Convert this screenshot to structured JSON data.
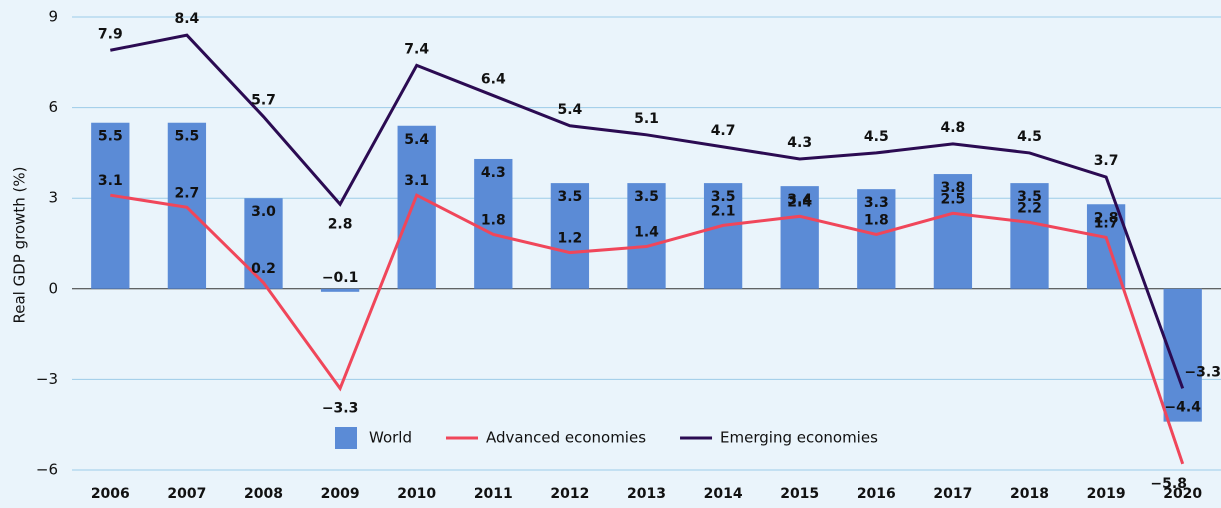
{
  "chart_data": {
    "type": "bar_line",
    "y_label": "Real GDP growth (%)",
    "categories": [
      "2006",
      "2007",
      "2008",
      "2009",
      "2010",
      "2011",
      "2012",
      "2013",
      "2014",
      "2015",
      "2016",
      "2017",
      "2018",
      "2019",
      "2020"
    ],
    "series": [
      {
        "name": "World",
        "type": "bar",
        "color": "#5b8bd6",
        "values": [
          5.5,
          5.5,
          3.0,
          -0.1,
          5.4,
          4.3,
          3.5,
          3.5,
          3.5,
          3.4,
          3.3,
          3.8,
          3.5,
          2.8,
          -4.4
        ],
        "value_labels": [
          "5.5",
          "5.5",
          "3.0",
          "−0.1",
          "5.4",
          "4.3",
          "3.5",
          "3.5",
          "3.5",
          "3.4",
          "3.3",
          "3.8",
          "3.5",
          "2.8",
          "−4.4"
        ]
      },
      {
        "name": "Advanced economies",
        "type": "line",
        "color": "#f0465a",
        "values": [
          3.1,
          2.7,
          0.2,
          -3.3,
          3.1,
          1.8,
          1.2,
          1.4,
          2.1,
          2.4,
          1.8,
          2.5,
          2.2,
          1.7,
          -5.8
        ],
        "value_labels": [
          "3.1",
          "2.7",
          "0.2",
          "−3.3",
          "3.1",
          "1.8",
          "1.2",
          "1.4",
          "2.1",
          "2.4",
          "1.8",
          "2.5",
          "2.2",
          "1.7",
          "−5.8"
        ]
      },
      {
        "name": "Emerging economies",
        "type": "line",
        "color": "#2b0b52",
        "values": [
          7.9,
          8.4,
          5.7,
          2.8,
          7.4,
          6.4,
          5.4,
          5.1,
          4.7,
          4.3,
          4.5,
          4.8,
          4.5,
          3.7,
          -3.3
        ],
        "value_labels": [
          "7.9",
          "8.4",
          "5.7",
          "2.8",
          "7.4",
          "6.4",
          "5.4",
          "5.1",
          "4.7",
          "4.3",
          "4.5",
          "4.8",
          "4.5",
          "3.7",
          "−3.3"
        ]
      }
    ],
    "ylim": [
      -6.3,
      9.3
    ],
    "yticks": [
      {
        "value": -6,
        "label": "−6"
      },
      {
        "value": -3,
        "label": "−3"
      },
      0,
      3,
      6,
      9
    ],
    "grid": true,
    "legend": "bottom"
  }
}
